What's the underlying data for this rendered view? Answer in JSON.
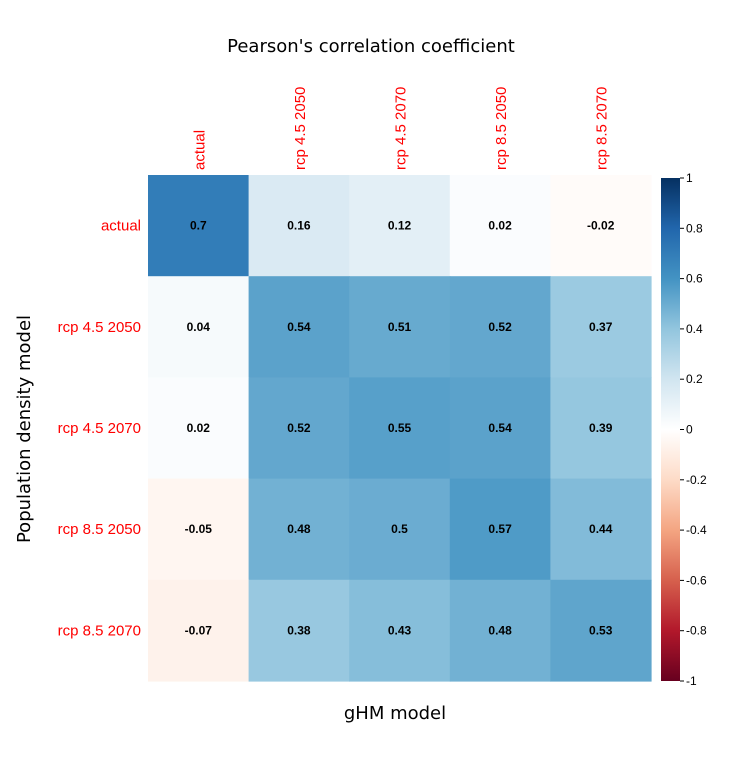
{
  "chart_data": {
    "type": "heatmap",
    "title": "Pearson's correlation coefficient",
    "xlabel": "gHM model",
    "ylabel": "Population density model",
    "x_categories": [
      "actual",
      "rcp 4.5 2050",
      "rcp 4.5 2070",
      "rcp 8.5 2050",
      "rcp 8.5 2070"
    ],
    "y_categories": [
      "actual",
      "rcp 4.5 2050",
      "rcp 4.5 2070",
      "rcp 8.5 2050",
      "rcp 8.5 2070"
    ],
    "values": [
      [
        0.7,
        0.16,
        0.12,
        0.02,
        -0.02
      ],
      [
        0.04,
        0.54,
        0.51,
        0.52,
        0.37
      ],
      [
        0.02,
        0.52,
        0.55,
        0.54,
        0.39
      ],
      [
        -0.05,
        0.48,
        0.5,
        0.57,
        0.44
      ],
      [
        -0.07,
        0.38,
        0.43,
        0.48,
        0.53
      ]
    ],
    "value_labels": [
      [
        "0.7",
        "0.16",
        "0.12",
        "0.02",
        "-0.02"
      ],
      [
        "0.04",
        "0.54",
        "0.51",
        "0.52",
        "0.37"
      ],
      [
        "0.02",
        "0.52",
        "0.55",
        "0.54",
        "0.39"
      ],
      [
        "-0.05",
        "0.48",
        "0.5",
        "0.57",
        "0.44"
      ],
      [
        "-0.07",
        "0.38",
        "0.43",
        "0.48",
        "0.53"
      ]
    ],
    "colorbar": {
      "range": [
        -1,
        1
      ],
      "ticks": [
        "1",
        "0.8",
        "0.6",
        "0.4",
        "0.2",
        "0",
        "-0.2",
        "-0.4",
        "-0.6",
        "-0.8",
        "-1"
      ],
      "tick_values": [
        1,
        0.8,
        0.6,
        0.4,
        0.2,
        0,
        -0.2,
        -0.4,
        -0.6,
        -0.8,
        -1
      ],
      "colors_low_to_high": [
        "#67001F",
        "#B2182B",
        "#D6604D",
        "#F4A582",
        "#FDDBC7",
        "#FFFFFF",
        "#D1E5F0",
        "#92C5DE",
        "#4393C3",
        "#2166AC",
        "#053061"
      ]
    },
    "tick_label_color": "#FF0000",
    "legend": "right",
    "grid": false
  }
}
